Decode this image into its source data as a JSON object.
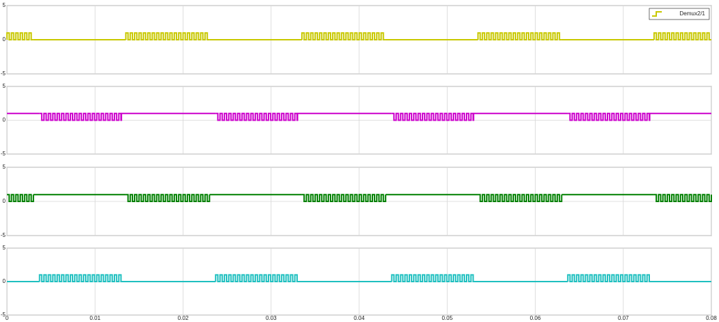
{
  "chart_data": [
    {
      "type": "pulse",
      "xlim": [
        0,
        0.08
      ],
      "ylim": [
        -5,
        5
      ],
      "yticks": [
        -5,
        0,
        5
      ],
      "xticks": [
        0,
        0.01,
        0.02,
        0.03,
        0.04,
        0.05,
        0.06,
        0.07,
        0.08
      ],
      "grid": true,
      "legend": "upper-right",
      "series": [
        {
          "name": "Demux2/1",
          "color": "#c8c800",
          "idle": 0,
          "high": 1,
          "low": 0,
          "pulse_period": 0.0005,
          "bursts": [
            [
              0,
              0.003
            ],
            [
              0.0135,
              0.023
            ],
            [
              0.0335,
              0.043
            ],
            [
              0.0535,
              0.063
            ],
            [
              0.0735,
              0.08
            ]
          ]
        }
      ]
    },
    {
      "type": "pulse",
      "xlim": [
        0,
        0.08
      ],
      "ylim": [
        -5,
        5
      ],
      "yticks": [
        -5,
        0,
        5
      ],
      "xticks": [
        0,
        0.01,
        0.02,
        0.03,
        0.04,
        0.05,
        0.06,
        0.07,
        0.08
      ],
      "grid": true,
      "series": [
        {
          "color": "#cc00cc",
          "idle": 1,
          "high": 1,
          "low": 0,
          "pulse_period": 0.0005,
          "bursts": [
            [
              0.0037,
              0.013
            ],
            [
              0.0237,
              0.033
            ],
            [
              0.0437,
              0.053
            ],
            [
              0.0637,
              0.073
            ]
          ]
        }
      ]
    },
    {
      "type": "pulse",
      "xlim": [
        0,
        0.08
      ],
      "ylim": [
        -5,
        5
      ],
      "yticks": [
        -5,
        0,
        5
      ],
      "xticks": [
        0,
        0.01,
        0.02,
        0.03,
        0.04,
        0.05,
        0.06,
        0.07,
        0.08
      ],
      "grid": true,
      "series": [
        {
          "color": "#008000",
          "idle": 1,
          "high": 1,
          "low": 0,
          "pulse_period": 0.0005,
          "bursts": [
            [
              0,
              0.003
            ],
            [
              0.0135,
              0.023
            ],
            [
              0.0335,
              0.043
            ],
            [
              0.0535,
              0.063
            ],
            [
              0.0735,
              0.08
            ]
          ]
        }
      ]
    },
    {
      "type": "pulse",
      "xlim": [
        0,
        0.08
      ],
      "ylim": [
        -5,
        5
      ],
      "yticks": [
        -5,
        0,
        5
      ],
      "xticks": [
        0,
        0.01,
        0.02,
        0.03,
        0.04,
        0.05,
        0.06,
        0.07,
        0.08
      ],
      "grid": true,
      "xticklabels": true,
      "series": [
        {
          "color": "#20c0c0",
          "idle": 0,
          "high": 1,
          "low": 0,
          "pulse_period": 0.0005,
          "bursts": [
            [
              0.0037,
              0.013
            ],
            [
              0.0237,
              0.033
            ],
            [
              0.0437,
              0.053
            ],
            [
              0.0637,
              0.073
            ]
          ]
        }
      ]
    }
  ]
}
